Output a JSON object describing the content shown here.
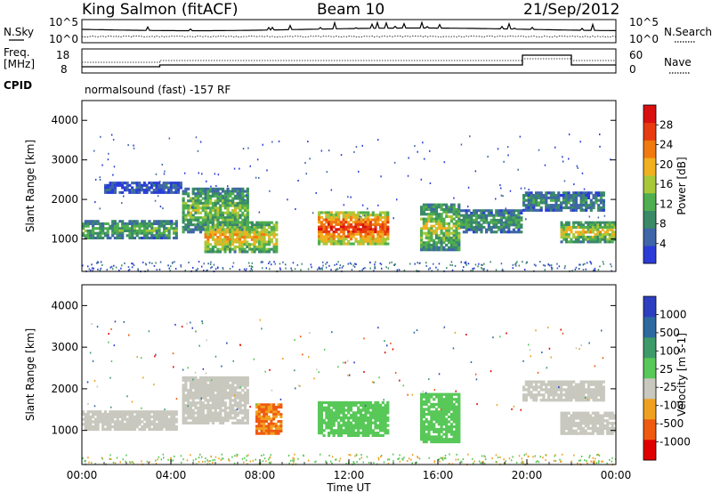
{
  "header": {
    "station": "King Salmon (fitACF)",
    "beam": "Beam 10",
    "date": "21/Sep/2012",
    "cpid_label": "CPID",
    "cpid_text": "normalsound (fast) -157 RF"
  },
  "noise_panel": {
    "left_label": "N.Sky",
    "right_label": "N.Search",
    "left_ticks": [
      "10^5",
      "10^0"
    ],
    "right_ticks": [
      "10^5",
      "10^0"
    ]
  },
  "freq_panel": {
    "left_label_1": "Freq.",
    "left_label_2": "[MHz]",
    "right_label": "Nave",
    "left_ticks": [
      "18",
      "8"
    ],
    "right_ticks": [
      "60",
      "0"
    ]
  },
  "colors": {
    "power": [
      "#2b3cd8",
      "#3f66a8",
      "#3a8a68",
      "#4fae4f",
      "#a8c83a",
      "#f0b020",
      "#f07a10",
      "#e83a10",
      "#d81010"
    ],
    "velocity": [
      "#e00000",
      "#ef5a10",
      "#f0a020",
      "#c8c8bf",
      "#58c858",
      "#3f9a6a",
      "#2e6aa0",
      "#2d3fc0"
    ],
    "ground_scatter": "#c8c8bf"
  },
  "chart_data": [
    {
      "type": "heatmap",
      "name": "power",
      "ylabel": "Slant Range [km]",
      "colorbar_label": "Power [dB]",
      "colorbar_ticks": [
        "4",
        "8",
        "12",
        "16",
        "20",
        "24",
        "28"
      ],
      "y_ticks": [
        "1000",
        "2000",
        "3000",
        "4000"
      ],
      "ylim": [
        180,
        4500
      ],
      "xlim": [
        0,
        24
      ],
      "regions": [
        {
          "t0": 0.0,
          "t1": 4.3,
          "r0": 1000,
          "r1": 1480,
          "level": 0.35
        },
        {
          "t0": 1.0,
          "t1": 4.5,
          "r0": 2150,
          "r1": 2450,
          "level": 0.12
        },
        {
          "t0": 4.5,
          "t1": 7.5,
          "r0": 1150,
          "r1": 2300,
          "level": 0.4
        },
        {
          "t0": 5.5,
          "t1": 8.8,
          "r0": 650,
          "r1": 1450,
          "level": 0.55
        },
        {
          "t0": 10.6,
          "t1": 13.8,
          "r0": 850,
          "r1": 1700,
          "level": 0.78
        },
        {
          "t0": 15.2,
          "t1": 17.0,
          "r0": 700,
          "r1": 1900,
          "level": 0.45
        },
        {
          "t0": 17.0,
          "t1": 19.8,
          "r0": 1150,
          "r1": 1750,
          "level": 0.3
        },
        {
          "t0": 19.8,
          "t1": 23.5,
          "r0": 1700,
          "r1": 2200,
          "level": 0.25
        },
        {
          "t0": 21.5,
          "t1": 24.0,
          "r0": 900,
          "r1": 1450,
          "level": 0.5
        }
      ]
    },
    {
      "type": "heatmap",
      "name": "velocity",
      "ylabel": "Slant Range [km]",
      "colorbar_label": "Velocity [m s-1]",
      "colorbar_ticks": [
        "-1000",
        "-500",
        "-100",
        "-25",
        "25",
        "100",
        "500",
        "1000"
      ],
      "y_ticks": [
        "1000",
        "2000",
        "3000",
        "4000"
      ],
      "ylim": [
        180,
        4500
      ],
      "xlim": [
        0,
        24
      ],
      "x_ticks": [
        "00:00",
        "04:00",
        "08:00",
        "12:00",
        "16:00",
        "20:00",
        "00:00"
      ],
      "xlabel": "Time UT",
      "regions": [
        {
          "t0": 0.0,
          "t1": 4.3,
          "r0": 1000,
          "r1": 1480,
          "vel": 0
        },
        {
          "t0": 4.5,
          "t1": 7.5,
          "r0": 1150,
          "r1": 2300,
          "vel": 0
        },
        {
          "t0": 7.8,
          "t1": 9.0,
          "r0": 900,
          "r1": 1650,
          "vel": -300
        },
        {
          "t0": 10.6,
          "t1": 13.8,
          "r0": 850,
          "r1": 1700,
          "vel": 150
        },
        {
          "t0": 15.2,
          "t1": 17.0,
          "r0": 700,
          "r1": 1900,
          "vel": 120
        },
        {
          "t0": 19.8,
          "t1": 23.5,
          "r0": 1700,
          "r1": 2200,
          "vel": 0
        },
        {
          "t0": 21.5,
          "t1": 24.0,
          "r0": 900,
          "r1": 1450,
          "vel": 0
        }
      ]
    }
  ]
}
